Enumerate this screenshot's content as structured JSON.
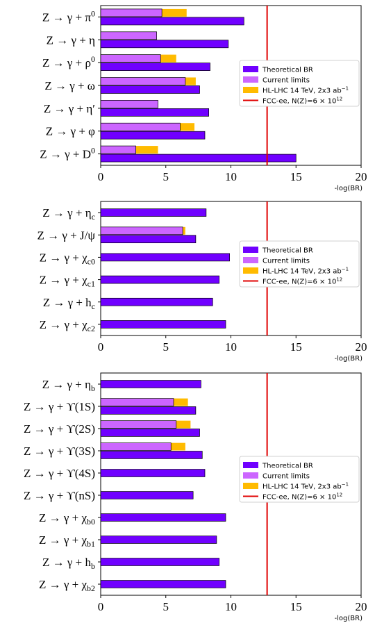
{
  "colors": {
    "theoretical": "#7000ff",
    "current": "#cc66ff",
    "hllhc": "#ffbb00",
    "fcc": "#e00000"
  },
  "legend": {
    "theoretical": "Theoretical BR",
    "current": "Current limits",
    "hllhc": "HL-LHC 14 TeV, 2x3 ab",
    "hllhc_exp": "−1",
    "fcc": "FCC-ee, N(Z)=6 × 10",
    "fcc_exp": "12"
  },
  "chart_data": [
    {
      "type": "bar",
      "orientation": "horizontal",
      "xlabel": "-log(BR)",
      "xlim": [
        0,
        20
      ],
      "xticks": [
        "0",
        "5",
        "10",
        "15",
        "20"
      ],
      "vline": 12.78,
      "legend_position": "right",
      "categories": [
        {
          "label": "Z → γ + π",
          "sup": "0",
          "sub": "",
          "theory": 11.0,
          "current": 4.7,
          "hllhc": 6.6
        },
        {
          "label": "Z → γ + η",
          "sup": "",
          "sub": "",
          "theory": 9.8,
          "current": 4.3,
          "hllhc": null
        },
        {
          "label": "Z → γ + ρ",
          "sup": "0",
          "sub": "",
          "theory": 8.4,
          "current": 4.6,
          "hllhc": 5.8
        },
        {
          "label": "Z → γ + ω",
          "sup": "",
          "sub": "",
          "theory": 7.6,
          "current": 6.5,
          "hllhc": 7.3
        },
        {
          "label": "Z → γ + η′",
          "sup": "",
          "sub": "",
          "theory": 8.3,
          "current": 4.4,
          "hllhc": null
        },
        {
          "label": "Z → γ + φ",
          "sup": "",
          "sub": "",
          "theory": 8.0,
          "current": 6.1,
          "hllhc": 7.2
        },
        {
          "label": "Z → γ + D",
          "sup": "0",
          "sub": "",
          "theory": 15.0,
          "current": 2.7,
          "hllhc": 4.4
        }
      ]
    },
    {
      "type": "bar",
      "orientation": "horizontal",
      "xlabel": "-log(BR)",
      "xlim": [
        0,
        20
      ],
      "xticks": [
        "0",
        "5",
        "10",
        "15",
        "20"
      ],
      "vline": 12.78,
      "legend_position": "right",
      "categories": [
        {
          "label": "Z → γ + η",
          "sup": "",
          "sub": "c",
          "theory": 8.1,
          "current": null,
          "hllhc": null
        },
        {
          "label": "Z → γ + J/ψ",
          "sup": "",
          "sub": "",
          "theory": 7.3,
          "current": 6.3,
          "hllhc": 6.5
        },
        {
          "label": "Z → γ + χ",
          "sup": "",
          "sub": "c0",
          "theory": 9.9,
          "current": null,
          "hllhc": null
        },
        {
          "label": "Z → γ + χ",
          "sup": "",
          "sub": "c1",
          "theory": 9.1,
          "current": null,
          "hllhc": null
        },
        {
          "label": "Z → γ + h",
          "sup": "",
          "sub": "c",
          "theory": 8.6,
          "current": null,
          "hllhc": null
        },
        {
          "label": "Z → γ + χ",
          "sup": "",
          "sub": "c2",
          "theory": 9.6,
          "current": null,
          "hllhc": null
        }
      ]
    },
    {
      "type": "bar",
      "orientation": "horizontal",
      "xlabel": "-log(BR)",
      "xlim": [
        0,
        20
      ],
      "xticks": [
        "0",
        "5",
        "10",
        "15",
        "20"
      ],
      "vline": 12.78,
      "legend_position": "right",
      "categories": [
        {
          "label": "Z → γ + η",
          "sup": "",
          "sub": "b",
          "theory": 7.7,
          "current": null,
          "hllhc": null
        },
        {
          "label": "Z → γ + ϒ(1S)",
          "sup": "",
          "sub": "",
          "theory": 7.3,
          "current": 5.6,
          "hllhc": 6.7
        },
        {
          "label": "Z → γ + ϒ(2S)",
          "sup": "",
          "sub": "",
          "theory": 7.6,
          "current": 5.8,
          "hllhc": 6.9
        },
        {
          "label": "Z → γ + ϒ(3S)",
          "sup": "",
          "sub": "",
          "theory": 7.8,
          "current": 5.4,
          "hllhc": 6.5
        },
        {
          "label": "Z → γ + ϒ(4S)",
          "sup": "",
          "sub": "",
          "theory": 8.0,
          "current": null,
          "hllhc": null
        },
        {
          "label": "Z → γ + ϒ(nS)",
          "sup": "",
          "sub": "",
          "theory": 7.1,
          "current": null,
          "hllhc": null
        },
        {
          "label": "Z → γ + χ",
          "sup": "",
          "sub": "b0",
          "theory": 9.6,
          "current": null,
          "hllhc": null
        },
        {
          "label": "Z → γ + χ",
          "sup": "",
          "sub": "b1",
          "theory": 8.9,
          "current": null,
          "hllhc": null
        },
        {
          "label": "Z → γ + h",
          "sup": "",
          "sub": "b",
          "theory": 9.1,
          "current": null,
          "hllhc": null
        },
        {
          "label": "Z → γ + χ",
          "sup": "",
          "sub": "b2",
          "theory": 9.6,
          "current": null,
          "hllhc": null
        }
      ]
    }
  ]
}
